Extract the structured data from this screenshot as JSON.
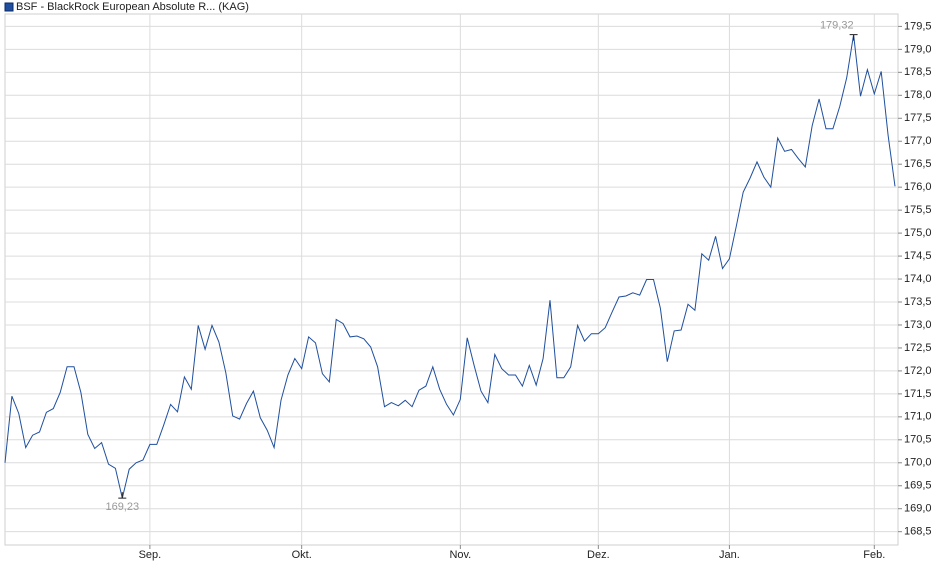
{
  "chart_data": {
    "type": "line",
    "legend": "BSF - BlackRock European Absolute R... (KAG)",
    "series": [
      {
        "name": "BSF - BlackRock European Absolute R... (KAG)",
        "color": "#1f4f9e",
        "values": [
          170.0,
          171.45,
          171.07,
          170.33,
          170.6,
          170.67,
          171.1,
          171.18,
          171.53,
          172.09,
          172.09,
          171.53,
          170.62,
          170.31,
          170.44,
          169.97,
          169.88,
          169.23,
          169.86,
          170.0,
          170.06,
          170.4,
          170.4,
          170.82,
          171.27,
          171.11,
          171.87,
          171.6,
          172.99,
          172.47,
          172.99,
          172.63,
          171.96,
          171.02,
          170.95,
          171.29,
          171.56,
          170.98,
          170.71,
          170.33,
          171.36,
          171.91,
          172.27,
          172.05,
          172.74,
          172.61,
          171.94,
          171.76,
          173.12,
          173.03,
          172.74,
          172.76,
          172.7,
          172.52,
          172.09,
          171.22,
          171.31,
          171.24,
          171.36,
          171.22,
          171.58,
          171.67,
          172.09,
          171.6,
          171.27,
          171.04,
          171.38,
          172.72,
          172.12,
          171.56,
          171.31,
          172.36,
          172.05,
          171.91,
          171.91,
          171.67,
          172.12,
          171.69,
          172.27,
          173.54,
          171.85,
          171.85,
          172.09,
          172.99,
          172.65,
          172.81,
          172.81,
          172.94,
          173.28,
          173.61,
          173.63,
          173.7,
          173.65,
          173.99,
          173.99,
          173.36,
          172.2,
          172.87,
          172.89,
          173.45,
          173.32,
          174.55,
          174.41,
          174.93,
          174.23,
          174.44,
          175.15,
          175.89,
          176.2,
          176.55,
          176.22,
          176.0,
          177.07,
          176.78,
          176.82,
          176.62,
          176.44,
          177.34,
          177.92,
          177.27,
          177.27,
          177.76,
          178.38,
          179.32,
          177.98,
          178.56,
          178.03,
          178.52,
          177.13,
          176.02
        ]
      }
    ],
    "xlim": [
      0,
      129
    ],
    "xticks": [
      {
        "value": 21,
        "label": "Sep."
      },
      {
        "value": 43,
        "label": "Okt."
      },
      {
        "value": 66,
        "label": "Nov."
      },
      {
        "value": 86,
        "label": "Dez."
      },
      {
        "value": 105,
        "label": "Jan."
      },
      {
        "value": 126,
        "label": "Feb."
      }
    ],
    "ylim": [
      168.21,
      179.77
    ],
    "yticks": [
      {
        "value": 168.5,
        "label": "168,5"
      },
      {
        "value": 169,
        "label": "169,0"
      },
      {
        "value": 169.5,
        "label": "169,5"
      },
      {
        "value": 170,
        "label": "170,0"
      },
      {
        "value": 170.5,
        "label": "170,5"
      },
      {
        "value": 171,
        "label": "171,0"
      },
      {
        "value": 171.5,
        "label": "171,5"
      },
      {
        "value": 172,
        "label": "172,0"
      },
      {
        "value": 172.5,
        "label": "172,5"
      },
      {
        "value": 173,
        "label": "173,0"
      },
      {
        "value": 173.5,
        "label": "173,5"
      },
      {
        "value": 174,
        "label": "174,0"
      },
      {
        "value": 174.5,
        "label": "174,5"
      },
      {
        "value": 175,
        "label": "175,0"
      },
      {
        "value": 175.5,
        "label": "175,5"
      },
      {
        "value": 176,
        "label": "176,0"
      },
      {
        "value": 176.5,
        "label": "176,5"
      },
      {
        "value": 177,
        "label": "177,0"
      },
      {
        "value": 177.5,
        "label": "177,5"
      },
      {
        "value": 178,
        "label": "178,0"
      },
      {
        "value": 178.5,
        "label": "178,5"
      },
      {
        "value": 179,
        "label": "179,0"
      },
      {
        "value": 179.5,
        "label": "179,5"
      }
    ],
    "grid": true,
    "annotations": [
      {
        "index": 123,
        "value": 179.32,
        "label": "179,32",
        "position": "above"
      },
      {
        "index": 17,
        "value": 169.23,
        "label": "169,23",
        "position": "below"
      }
    ]
  }
}
